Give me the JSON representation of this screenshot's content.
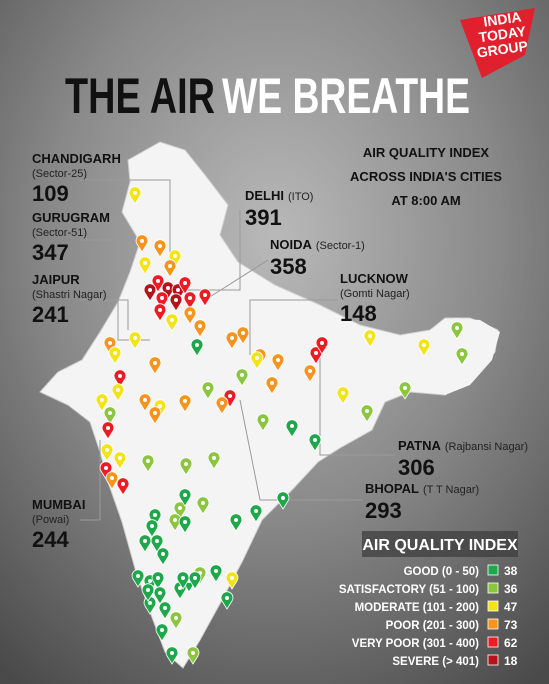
{
  "logo": {
    "lines": [
      "INDIA",
      "TODAY",
      "GROUP"
    ]
  },
  "title": {
    "part1": "THE AIR",
    "part2": "WE BREATHE"
  },
  "subtitle": [
    "AIR QUALITY INDEX",
    "ACROSS INDIA'S CITIES",
    "AT 8:00 AM"
  ],
  "callouts": [
    {
      "city": "CHANDIGARH",
      "location": "(Sector-25)",
      "aqi": 109
    },
    {
      "city": "GURUGRAM",
      "location": "(Sector-51)",
      "aqi": 347
    },
    {
      "city": "JAIPUR",
      "location": "(Shastri Nagar)",
      "aqi": 241
    },
    {
      "city": "DELHI",
      "location": "(ITO)",
      "aqi": 391
    },
    {
      "city": "NOIDA",
      "location": "(Sector-1)",
      "aqi": 358
    },
    {
      "city": "LUCKNOW",
      "location": "(Gomti Nagar)",
      "aqi": 148
    },
    {
      "city": "PATNA",
      "location": "(Rajbansi Nagar)",
      "aqi": 306
    },
    {
      "city": "BHOPAL",
      "location": "(T T Nagar)",
      "aqi": 293
    },
    {
      "city": "MUMBAI",
      "location": "(Powai)",
      "aqi": 244
    }
  ],
  "legend": {
    "title": "AIR QUALITY INDEX",
    "items": [
      {
        "label": "GOOD (0 - 50)",
        "color": "#1ea84b",
        "count": 38
      },
      {
        "label": "SATISFACTORY (51 - 100)",
        "color": "#8cc63f",
        "count": 36
      },
      {
        "label": "MODERATE (101 - 200)",
        "color": "#f2e31b",
        "count": 47
      },
      {
        "label": "POOR (201 - 300)",
        "color": "#f7941d",
        "count": 73
      },
      {
        "label": "VERY POOR (301 - 400)",
        "color": "#ed1c24",
        "count": 62
      },
      {
        "label": "SEVERE (> 401)",
        "color": "#b5121b",
        "count": 18
      }
    ]
  }
}
